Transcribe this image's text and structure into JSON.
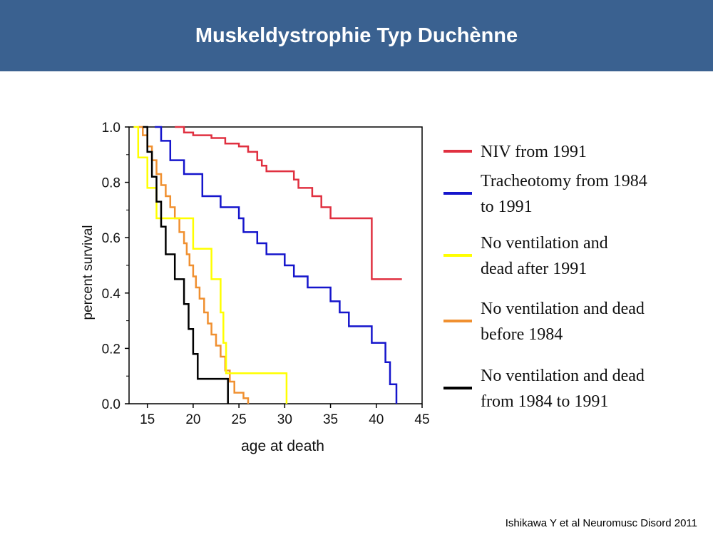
{
  "header": {
    "title": "Muskeldystrophie Typ Duchènne"
  },
  "citation": "Ishikawa Y et al Neuromusc Disord 2011",
  "chart_data": {
    "type": "line",
    "step": true,
    "xlabel": "age at death",
    "ylabel": "percent survival",
    "xlim": [
      13,
      45
    ],
    "ylim": [
      0,
      1
    ],
    "xticks": [
      "15",
      "20",
      "25",
      "30",
      "35",
      "40",
      "45"
    ],
    "yticks": [
      "0.0",
      "0.2",
      "0.4",
      "0.6",
      "0.8",
      "1.0"
    ],
    "grid": false,
    "legend_position": "right",
    "series": [
      {
        "name": [
          "NIV from 1991"
        ],
        "color": "#e03040",
        "points": [
          [
            18,
            1.0
          ],
          [
            19,
            0.98
          ],
          [
            20,
            0.97
          ],
          [
            22,
            0.96
          ],
          [
            23.5,
            0.94
          ],
          [
            25,
            0.93
          ],
          [
            26,
            0.91
          ],
          [
            27,
            0.88
          ],
          [
            27.5,
            0.86
          ],
          [
            28,
            0.84
          ],
          [
            31,
            0.81
          ],
          [
            31.5,
            0.78
          ],
          [
            33,
            0.75
          ],
          [
            34,
            0.71
          ],
          [
            35,
            0.67
          ],
          [
            39.5,
            0.45
          ],
          [
            42.8,
            0.45
          ]
        ]
      },
      {
        "name": [
          "Tracheotomy from 1984",
          "to 1991"
        ],
        "color": "#1515cc",
        "points": [
          [
            15.8,
            1.0
          ],
          [
            16.5,
            0.95
          ],
          [
            17.5,
            0.88
          ],
          [
            19,
            0.83
          ],
          [
            21,
            0.75
          ],
          [
            23,
            0.71
          ],
          [
            25,
            0.67
          ],
          [
            25.5,
            0.62
          ],
          [
            27,
            0.58
          ],
          [
            28,
            0.54
          ],
          [
            30,
            0.5
          ],
          [
            31,
            0.46
          ],
          [
            32.5,
            0.42
          ],
          [
            35,
            0.37
          ],
          [
            36,
            0.33
          ],
          [
            37,
            0.28
          ],
          [
            39.5,
            0.22
          ],
          [
            41,
            0.15
          ],
          [
            41.5,
            0.07
          ],
          [
            42.2,
            0.0
          ]
        ]
      },
      {
        "name": [
          "No ventilation and",
          "dead after 1991"
        ],
        "color": "#ffff00",
        "points": [
          [
            13.5,
            1.0
          ],
          [
            14,
            0.89
          ],
          [
            15,
            0.78
          ],
          [
            16,
            0.67
          ],
          [
            20,
            0.56
          ],
          [
            22,
            0.45
          ],
          [
            23,
            0.33
          ],
          [
            23.3,
            0.22
          ],
          [
            23.6,
            0.11
          ],
          [
            30.2,
            0.0
          ]
        ]
      },
      {
        "name": [
          "No ventilation and dead",
          "before 1984"
        ],
        "color": "#f09030",
        "points": [
          [
            14,
            1.0
          ],
          [
            14.5,
            0.97
          ],
          [
            15,
            0.93
          ],
          [
            15.5,
            0.88
          ],
          [
            16,
            0.83
          ],
          [
            16.5,
            0.79
          ],
          [
            17,
            0.75
          ],
          [
            17.5,
            0.71
          ],
          [
            18,
            0.67
          ],
          [
            18.5,
            0.62
          ],
          [
            19,
            0.58
          ],
          [
            19.3,
            0.54
          ],
          [
            19.6,
            0.5
          ],
          [
            20,
            0.46
          ],
          [
            20.3,
            0.42
          ],
          [
            20.7,
            0.38
          ],
          [
            21.2,
            0.33
          ],
          [
            21.6,
            0.29
          ],
          [
            22,
            0.25
          ],
          [
            22.5,
            0.21
          ],
          [
            23,
            0.17
          ],
          [
            23.5,
            0.12
          ],
          [
            24,
            0.08
          ],
          [
            24.5,
            0.04
          ],
          [
            25.5,
            0.02
          ],
          [
            26,
            0.0
          ]
        ]
      },
      {
        "name": [
          "No ventilation and dead",
          "from 1984 to 1991"
        ],
        "color": "#000000",
        "points": [
          [
            14.5,
            1.0
          ],
          [
            15,
            0.91
          ],
          [
            15.5,
            0.82
          ],
          [
            16,
            0.73
          ],
          [
            16.5,
            0.64
          ],
          [
            17,
            0.54
          ],
          [
            18,
            0.45
          ],
          [
            19,
            0.36
          ],
          [
            19.5,
            0.27
          ],
          [
            20,
            0.18
          ],
          [
            20.5,
            0.09
          ],
          [
            23.8,
            0.0
          ]
        ]
      }
    ]
  }
}
